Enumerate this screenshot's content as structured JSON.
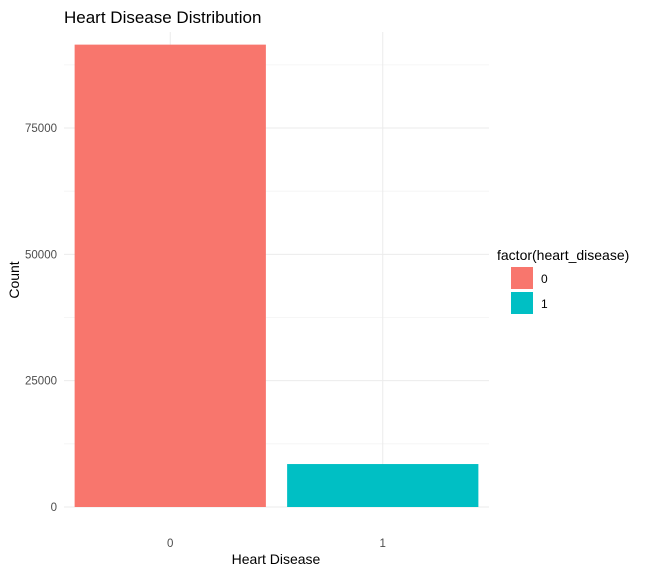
{
  "chart_data": {
    "type": "bar",
    "title": "Heart Disease Distribution",
    "xlabel": "Heart Disease",
    "ylabel": "Count",
    "categories": [
      "0",
      "1"
    ],
    "values": [
      91500,
      8500
    ],
    "colors": [
      "#F8766D",
      "#00BFC4"
    ],
    "ylim": [
      0,
      94000
    ],
    "yticks": [
      0,
      25000,
      50000,
      75000
    ],
    "ytick_labels": [
      "0",
      "25000",
      "50000",
      "75000"
    ],
    "grid": true,
    "legend": {
      "title": "factor(heart_disease)",
      "position": "right",
      "entries": [
        {
          "label": "0",
          "color": "#F8766D"
        },
        {
          "label": "1",
          "color": "#00BFC4"
        }
      ]
    }
  }
}
